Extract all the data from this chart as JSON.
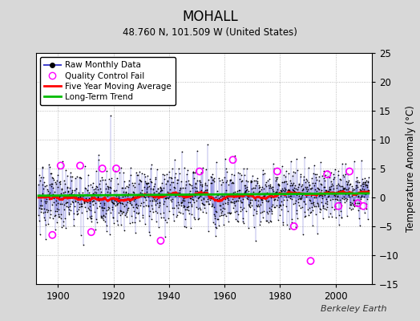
{
  "title": "MOHALL",
  "subtitle": "48.760 N, 101.509 W (United States)",
  "ylabel": "Temperature Anomaly (°C)",
  "watermark": "Berkeley Earth",
  "year_start": 1893,
  "year_end": 2011,
  "ylim": [
    -15,
    25
  ],
  "yticks": [
    -15,
    -10,
    -5,
    0,
    5,
    10,
    15,
    20,
    25
  ],
  "xticks": [
    1900,
    1920,
    1940,
    1960,
    1980,
    2000
  ],
  "bg_color": "#d8d8d8",
  "plot_bg_color": "#ffffff",
  "raw_line_color": "#4444cc",
  "raw_marker_color": "#000000",
  "qc_fail_color": "#ff00ff",
  "moving_avg_color": "#ff0000",
  "trend_color": "#00bb00",
  "trend_value": 0.5,
  "seed": 123
}
